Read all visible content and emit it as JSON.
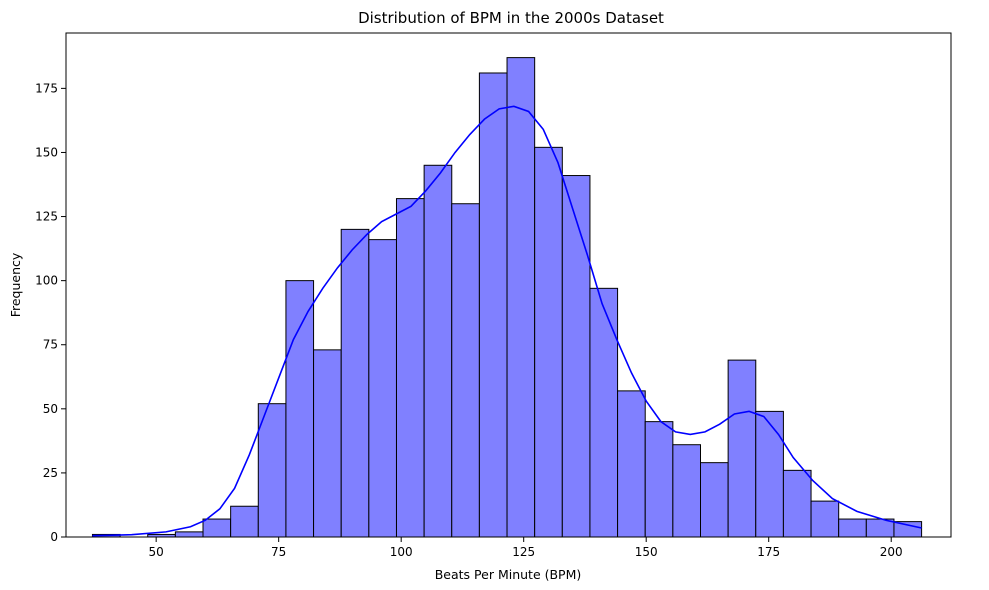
{
  "chart_data": {
    "type": "bar",
    "title": "Distribution of BPM in the 2000s Dataset",
    "xlabel": "Beats Per Minute (BPM)",
    "ylabel": "Frequency",
    "xlim": [
      31.6,
      212.2
    ],
    "ylim": [
      0,
      196.6
    ],
    "xticks": [
      50,
      75,
      100,
      125,
      150,
      175,
      200
    ],
    "yticks": [
      0,
      25,
      50,
      75,
      100,
      125,
      150,
      175
    ],
    "bin_edges": [
      37.0,
      42.64,
      48.28,
      53.92,
      59.56,
      65.2,
      70.84,
      76.48,
      82.12,
      87.76,
      93.4,
      99.04,
      104.68,
      110.32,
      115.96,
      121.6,
      127.24,
      132.88,
      138.52,
      144.16,
      149.8,
      155.44,
      161.08,
      166.72,
      172.36,
      178.0,
      183.64,
      189.28,
      194.92,
      200.56,
      206.2
    ],
    "counts": [
      1,
      0,
      1,
      2,
      7,
      12,
      52,
      100,
      73,
      120,
      116,
      132,
      145,
      130,
      181,
      187,
      152,
      141,
      97,
      57,
      45,
      36,
      29,
      69,
      49,
      26,
      14,
      7,
      7,
      6
    ],
    "kde": {
      "x": [
        37,
        45,
        52,
        57,
        60,
        63,
        66,
        69,
        72,
        75,
        78,
        81,
        84,
        87,
        90,
        93,
        96,
        99,
        102,
        105,
        108,
        111,
        114,
        117,
        120,
        123,
        126,
        129,
        132,
        135,
        138,
        141,
        144,
        147,
        150,
        153,
        156,
        159,
        162,
        165,
        168,
        171,
        174,
        177,
        180,
        184,
        188,
        193,
        199,
        206.2
      ],
      "y": [
        0.5,
        0.9,
        2,
        4,
        6.5,
        11,
        19,
        32,
        47,
        62,
        77,
        88,
        97,
        105,
        112,
        118,
        123,
        126,
        129,
        135,
        142,
        150,
        157,
        163,
        167,
        168,
        166,
        159,
        146,
        128,
        110,
        91,
        77,
        64,
        53,
        45,
        41,
        40,
        41,
        44,
        48,
        49,
        47,
        40,
        31,
        22,
        15,
        10,
        6.5,
        3.5
      ]
    },
    "colors": {
      "bar_fill": "#8080ff",
      "bar_edge": "#000000",
      "kde_line": "#0000ff"
    },
    "grid": false,
    "legend": "none"
  }
}
